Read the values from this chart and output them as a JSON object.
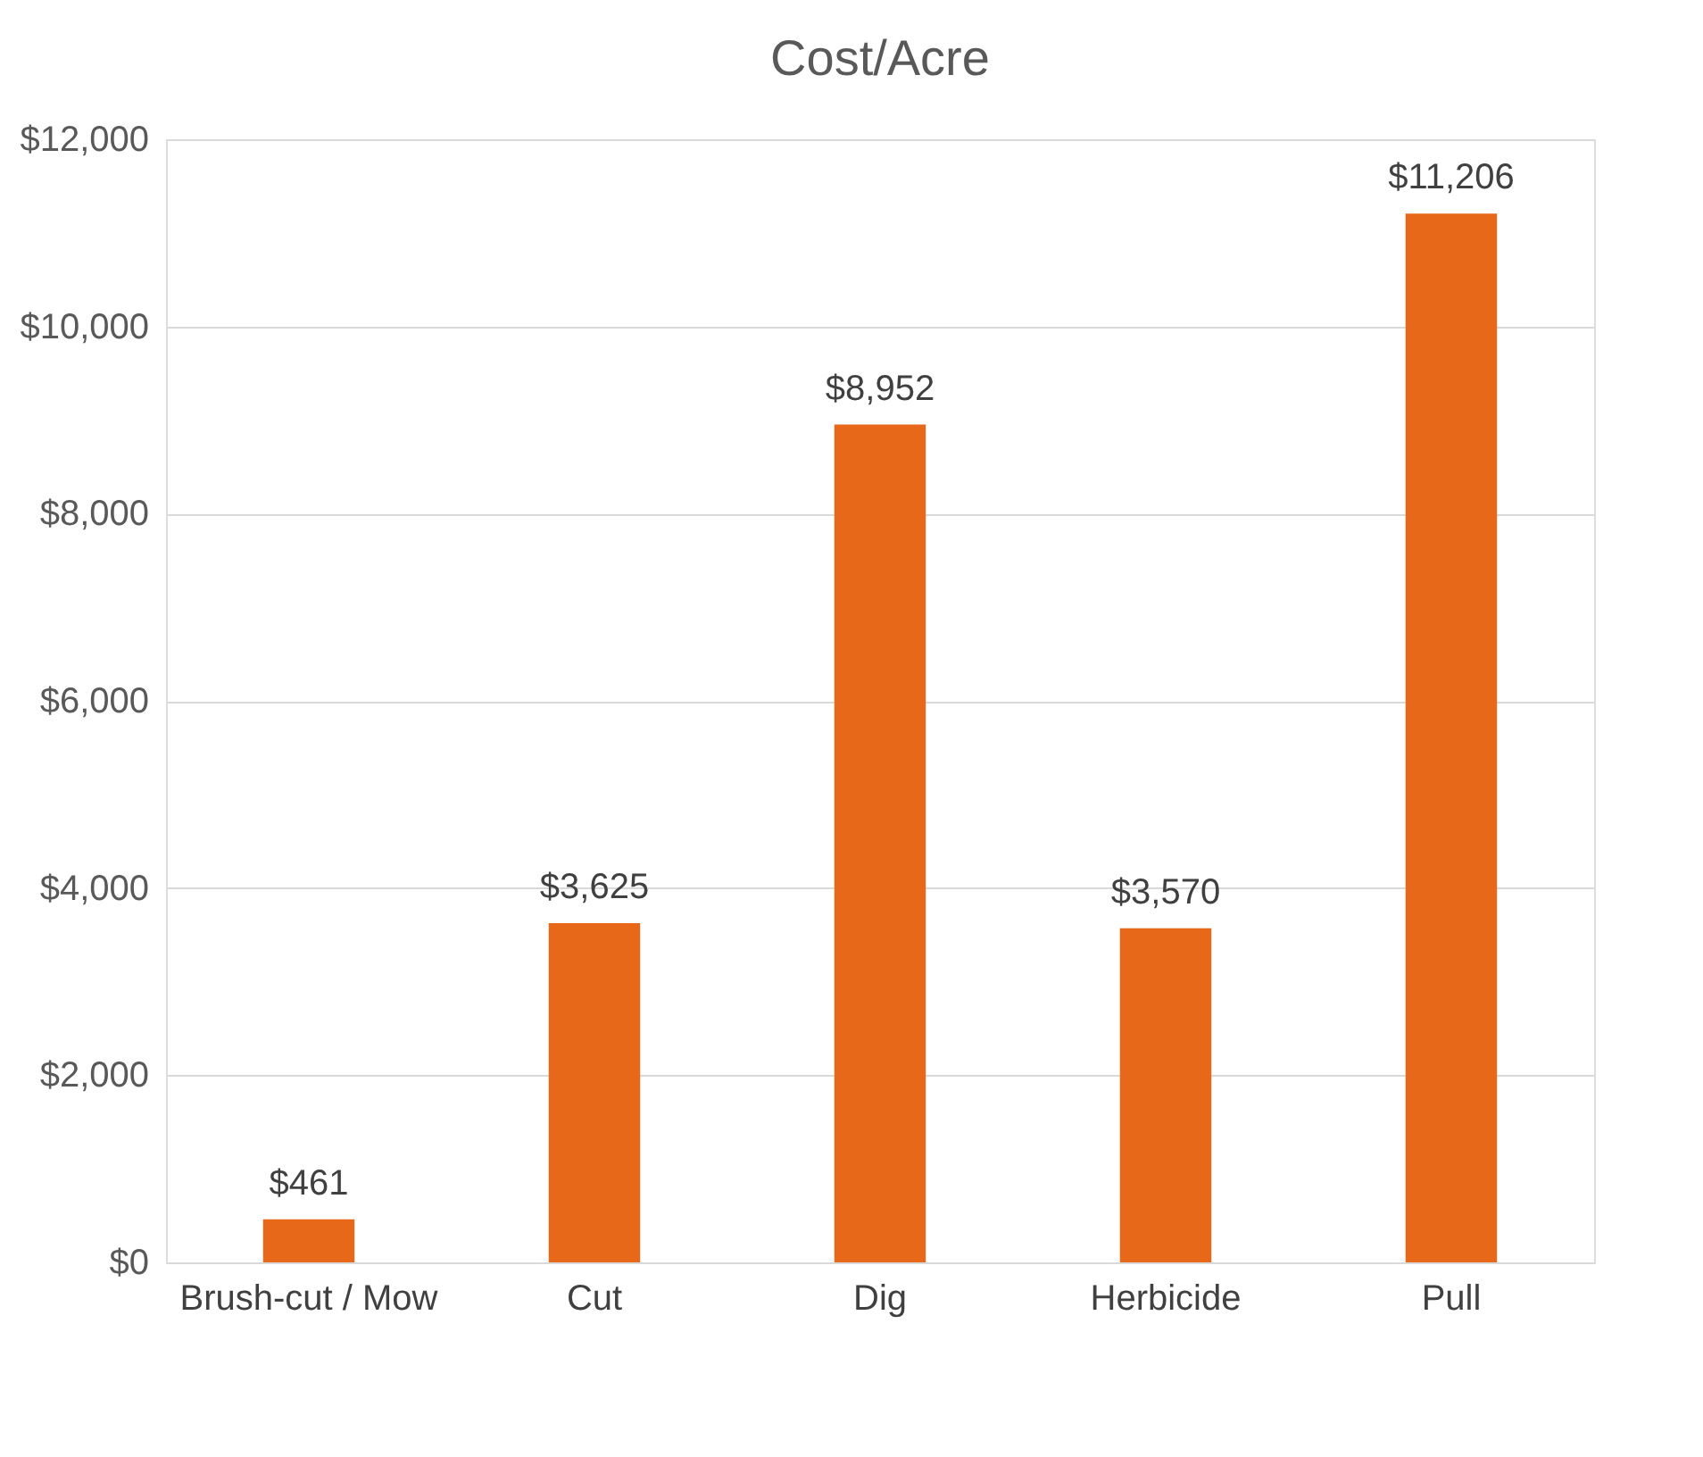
{
  "chart_data": {
    "type": "bar",
    "title": "Cost/Acre",
    "categories": [
      "Brush-cut / Mow",
      "Cut",
      "Dig",
      "Herbicide",
      "Pull"
    ],
    "values": [
      461,
      3625,
      8952,
      3570,
      11206
    ],
    "value_labels": [
      "$461",
      "$3,625",
      "$8,952",
      "$3,570",
      "$11,206"
    ],
    "color": "#e8681a",
    "ylim": [
      0,
      12000
    ],
    "yticks": [
      {
        "value": 0,
        "label": "$0"
      },
      {
        "value": 2000,
        "label": "$2,000"
      },
      {
        "value": 4000,
        "label": "$4,000"
      },
      {
        "value": 6000,
        "label": "$6,000"
      },
      {
        "value": 8000,
        "label": "$8,000"
      },
      {
        "value": 10000,
        "label": "$10,000"
      },
      {
        "value": 12000,
        "label": "$12,000"
      }
    ],
    "grid": "y"
  }
}
